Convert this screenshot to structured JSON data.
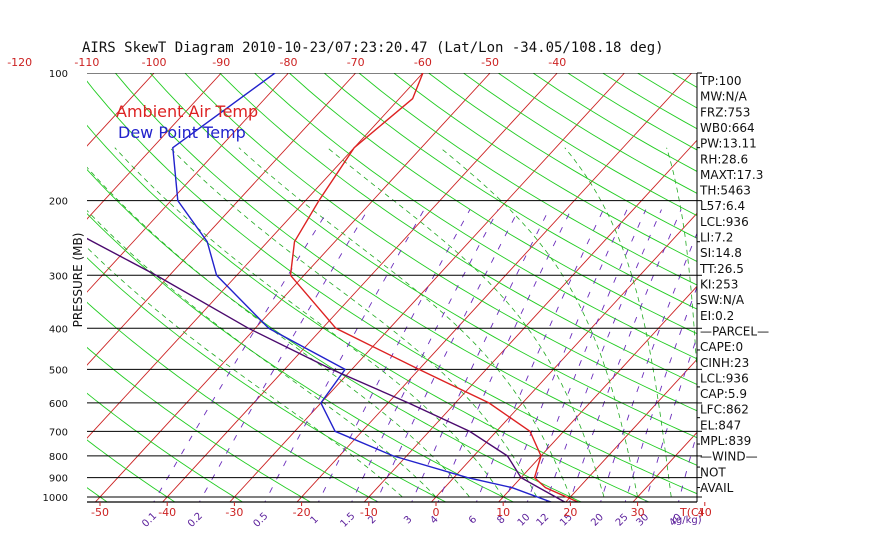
{
  "chart_data": {
    "type": "line",
    "title": "AIRS SkewT Diagram 2010-10-23/07:23:20.47 (Lat/Lon -34.05/108.18 deg)",
    "ylabel": "PRESSURE (MB)",
    "x_unit_label": "T(C)",
    "mix_unit_label": "(g/kg)",
    "pressure_ticks": [
      100,
      200,
      300,
      400,
      500,
      600,
      700,
      800,
      900,
      1000
    ],
    "pressure_range": [
      100,
      1050
    ],
    "bottom_temp_ticks": [
      -50,
      -40,
      -30,
      -20,
      -10,
      0,
      10,
      20,
      30,
      40
    ],
    "top_temp_ticks": [
      -120,
      -110,
      -100,
      -90,
      -80,
      -70,
      -60,
      -50,
      -40
    ],
    "mixing_ratio_labels": [
      "0.1",
      "0.2",
      "0.5",
      "1",
      "1.5",
      "2",
      "3",
      "4",
      "6",
      "8",
      "10",
      "12",
      "15",
      "20",
      "25",
      "30",
      "40"
    ],
    "legend": [
      {
        "name": "Ambient Air Temp",
        "color": "#dd2222"
      },
      {
        "name": "Dew Point Temp",
        "color": "#2222cc"
      }
    ],
    "series": [
      {
        "name": "Ambient Air Temp",
        "color": "#dd2222",
        "points": [
          [
            100,
            -60
          ],
          [
            115,
            -58
          ],
          [
            150,
            -60
          ],
          [
            200,
            -58
          ],
          [
            250,
            -56
          ],
          [
            300,
            -52
          ],
          [
            400,
            -38
          ],
          [
            500,
            -20
          ],
          [
            600,
            -5
          ],
          [
            700,
            5
          ],
          [
            800,
            10
          ],
          [
            900,
            12
          ],
          [
            950,
            15
          ],
          [
            1030,
            22
          ]
        ]
      },
      {
        "name": "Dew Point Temp",
        "color": "#2222cc",
        "points": [
          [
            100,
            -82
          ],
          [
            150,
            -87
          ],
          [
            200,
            -79
          ],
          [
            250,
            -69
          ],
          [
            300,
            -63
          ],
          [
            400,
            -48
          ],
          [
            500,
            -31
          ],
          [
            600,
            -30
          ],
          [
            700,
            -24
          ],
          [
            800,
            -12
          ],
          [
            900,
            2
          ],
          [
            950,
            10
          ],
          [
            1030,
            18
          ]
        ]
      },
      {
        "name": "Parcel",
        "color": "#4b0a6e",
        "points": [
          [
            100,
            -131
          ],
          [
            150,
            -119
          ],
          [
            200,
            -103
          ],
          [
            250,
            -86
          ],
          [
            300,
            -72
          ],
          [
            400,
            -51
          ],
          [
            500,
            -33
          ],
          [
            600,
            -17
          ],
          [
            700,
            -4
          ],
          [
            800,
            5
          ],
          [
            900,
            10
          ],
          [
            950,
            14
          ],
          [
            1030,
            20
          ]
        ]
      }
    ],
    "indices": [
      "TP:100",
      "MW:N/A",
      "FRZ:753",
      "WB0:664",
      "PW:13.11",
      "RH:28.6",
      "MAXT:17.3",
      "TH:5463",
      "L57:6.4",
      "LCL:936",
      "LI:7.2",
      "SI:14.8",
      "TT:26.5",
      "KI:253",
      "SW:N/A",
      "EI:0.2",
      "—PARCEL—",
      "CAPE:0",
      "CINH:23",
      "LCL:936",
      "CAP:5.9",
      "LFC:862",
      "EL:847",
      "MPL:839",
      "—WIND—",
      "NOT",
      "AVAIL"
    ]
  }
}
